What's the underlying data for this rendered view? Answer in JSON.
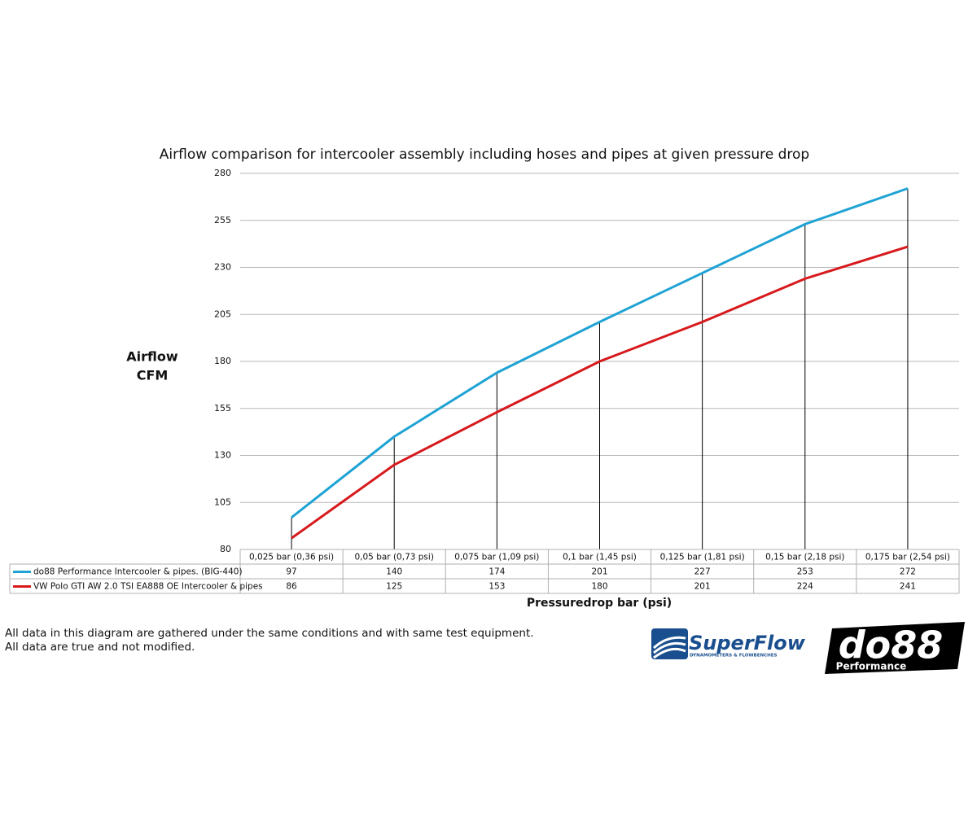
{
  "chart_data": {
    "type": "line",
    "title": "Airflow comparison for intercooler assembly including hoses and pipes at given pressure drop",
    "y_label": [
      "Airflow",
      "CFM"
    ],
    "x_label": "Pressuredrop bar (psi)",
    "categories": [
      "0,025 bar (0,36 psi)",
      "0,05 bar (0,73 psi)",
      "0,075 bar (1,09 psi)",
      "0,1 bar (1,45 psi)",
      "0,125 bar (1,81 psi)",
      "0,15 bar (2,18 psi)",
      "0,175 bar (2,54 psi)"
    ],
    "series": [
      {
        "name": "do88 Performance Intercooler & pipes. (BIG-440)",
        "color": "#1fa3d4",
        "values": [
          97,
          140,
          174,
          201,
          227,
          253,
          272
        ]
      },
      {
        "name": "VW Polo GTI AW 2.0 TSI EA888 OE Intercooler & pipes",
        "color": "#d7191c",
        "values": [
          86,
          125,
          153,
          180,
          201,
          224,
          241
        ]
      }
    ],
    "ylim": [
      80,
      280
    ],
    "yticks": [
      80,
      105,
      130,
      155,
      180,
      205,
      230,
      255,
      280
    ],
    "grid": true,
    "drop_lines": true,
    "data_table": true
  },
  "notes": [
    "All data in this diagram are gathered under the same conditions and with same test equipment.",
    "All data are true and not modified."
  ],
  "logos": {
    "superflow": {
      "name": "SuperFlow",
      "tagline": "DYNAMOMETERS & FLOWBENCHES"
    },
    "do88": {
      "name": "do88",
      "tagline": "Performance"
    }
  }
}
